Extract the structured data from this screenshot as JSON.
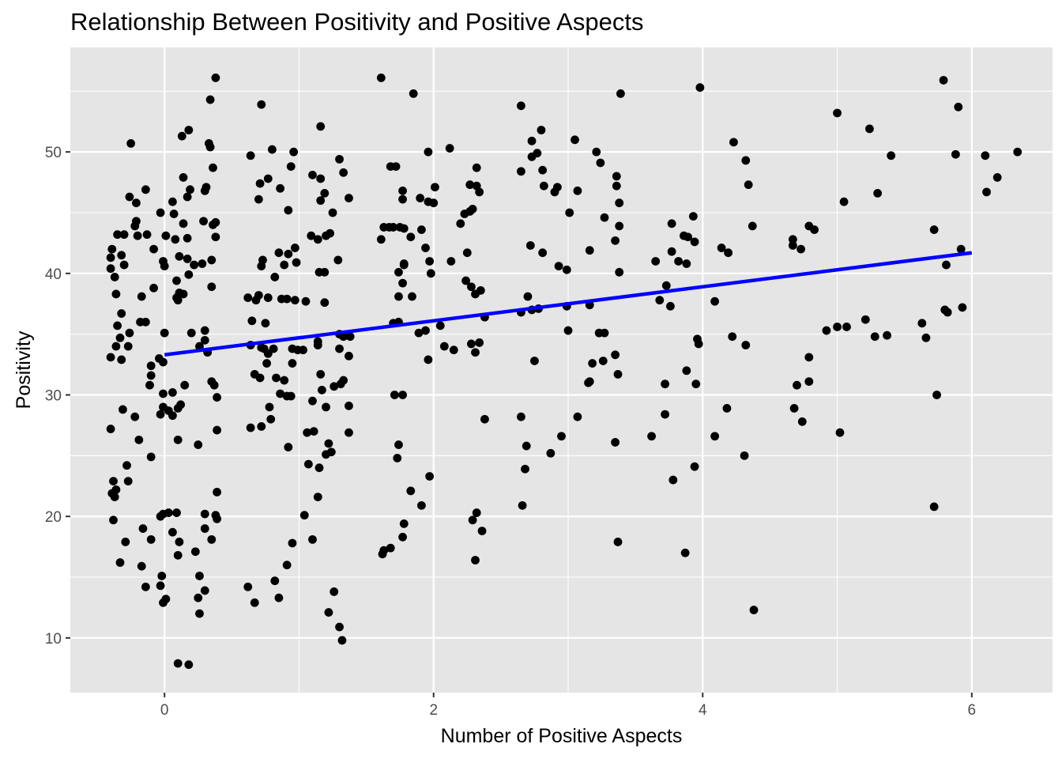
{
  "chart_data": {
    "type": "scatter",
    "title": "Relationship Between Positivity and Positive Aspects",
    "xlabel": "Number of Positive Aspects",
    "ylabel": "Positivity",
    "xlim": [
      -0.7,
      6.6
    ],
    "ylim": [
      5.5,
      58.6
    ],
    "x_ticks": [
      0,
      2,
      4,
      6
    ],
    "y_ticks": [
      10,
      20,
      30,
      40,
      50
    ],
    "grid": true,
    "colors": {
      "panel": "#e5e5e5",
      "grid": "#ffffff",
      "points": "#000000",
      "fit_line": "#0000ff"
    },
    "fit_line": {
      "x": [
        0,
        6
      ],
      "y": [
        33.3,
        41.7
      ]
    },
    "points": [
      [
        0.38,
        56.1
      ],
      [
        0.34,
        54.3
      ],
      [
        0.72,
        53.9
      ],
      [
        0.18,
        51.8
      ],
      [
        0.13,
        51.3
      ],
      [
        -0.25,
        50.7
      ],
      [
        0.33,
        50.7
      ],
      [
        0.34,
        50.4
      ],
      [
        0.36,
        48.7
      ],
      [
        0.14,
        47.9
      ],
      [
        0.31,
        47.1
      ],
      [
        0.19,
        46.9
      ],
      [
        0.3,
        46.8
      ],
      [
        0.17,
        46.3
      ],
      [
        -0.14,
        46.9
      ],
      [
        -0.26,
        46.3
      ],
      [
        -0.21,
        45.8
      ],
      [
        0.06,
        45.9
      ],
      [
        -0.03,
        45.0
      ],
      [
        0.07,
        44.9
      ],
      [
        0.29,
        44.3
      ],
      [
        0.38,
        44.2
      ],
      [
        -0.21,
        44.3
      ],
      [
        0.14,
        44.1
      ],
      [
        0.36,
        44.0
      ],
      [
        -0.22,
        43.9
      ],
      [
        0.01,
        43.1
      ],
      [
        -0.3,
        43.2
      ],
      [
        -0.35,
        43.2
      ],
      [
        -0.2,
        43.1
      ],
      [
        -0.13,
        43.2
      ],
      [
        0.17,
        42.9
      ],
      [
        0.38,
        43.0
      ],
      [
        0.08,
        42.8
      ],
      [
        -0.39,
        42.0
      ],
      [
        -0.4,
        41.3
      ],
      [
        -0.32,
        41.5
      ],
      [
        0.11,
        41.4
      ],
      [
        0.17,
        41.2
      ],
      [
        -0.08,
        42.0
      ],
      [
        -0.01,
        41.0
      ],
      [
        0.35,
        41.1
      ],
      [
        0.28,
        40.8
      ],
      [
        -0.3,
        40.7
      ],
      [
        0.22,
        40.7
      ],
      [
        -0.4,
        40.4
      ],
      [
        0.0,
        40.6
      ],
      [
        0.18,
        39.9
      ],
      [
        -0.37,
        39.7
      ],
      [
        0.09,
        39.4
      ],
      [
        0.35,
        38.9
      ],
      [
        0.11,
        38.4
      ],
      [
        0.14,
        38.3
      ],
      [
        0.09,
        38.0
      ],
      [
        -0.08,
        38.8
      ],
      [
        -0.36,
        38.3
      ],
      [
        -0.17,
        38.1
      ],
      [
        0.1,
        37.8
      ],
      [
        -0.32,
        36.7
      ],
      [
        -0.35,
        35.7
      ],
      [
        -0.18,
        36.0
      ],
      [
        -0.14,
        36.0
      ],
      [
        0.2,
        35.1
      ],
      [
        0.3,
        35.3
      ],
      [
        0.0,
        35.1
      ],
      [
        -0.26,
        35.1
      ],
      [
        -0.33,
        34.7
      ],
      [
        0.3,
        34.5
      ],
      [
        0.26,
        34.0
      ],
      [
        -0.36,
        34.0
      ],
      [
        -0.27,
        34.0
      ],
      [
        0.32,
        33.5
      ],
      [
        -0.4,
        33.1
      ],
      [
        -0.32,
        32.9
      ],
      [
        -0.04,
        33.0
      ],
      [
        -0.01,
        32.7
      ],
      [
        -0.1,
        32.4
      ],
      [
        -0.1,
        31.6
      ],
      [
        0.35,
        31.1
      ],
      [
        0.37,
        30.8
      ],
      [
        0.15,
        30.8
      ],
      [
        -0.11,
        30.8
      ],
      [
        0.06,
        30.2
      ],
      [
        -0.01,
        30.1
      ],
      [
        0.39,
        29.8
      ],
      [
        0.12,
        29.2
      ],
      [
        0.1,
        28.9
      ],
      [
        -0.01,
        29.0
      ],
      [
        0.03,
        28.7
      ],
      [
        0.06,
        28.3
      ],
      [
        -0.03,
        28.4
      ],
      [
        -0.31,
        28.8
      ],
      [
        -0.22,
        28.2
      ],
      [
        -0.4,
        27.2
      ],
      [
        0.39,
        27.1
      ],
      [
        0.1,
        26.3
      ],
      [
        -0.19,
        26.3
      ],
      [
        0.25,
        25.9
      ],
      [
        -0.1,
        24.9
      ],
      [
        -0.28,
        24.2
      ],
      [
        -0.27,
        22.9
      ],
      [
        -0.38,
        22.9
      ],
      [
        -0.36,
        22.2
      ],
      [
        -0.39,
        21.9
      ],
      [
        -0.37,
        21.6
      ],
      [
        0.39,
        22.0
      ],
      [
        0.09,
        20.3
      ],
      [
        0.03,
        20.3
      ],
      [
        -0.01,
        20.2
      ],
      [
        -0.03,
        20.0
      ],
      [
        0.3,
        20.2
      ],
      [
        0.38,
        20.1
      ],
      [
        0.39,
        19.8
      ],
      [
        -0.38,
        19.7
      ],
      [
        0.3,
        19.0
      ],
      [
        -0.16,
        19.0
      ],
      [
        0.06,
        18.7
      ],
      [
        0.35,
        18.1
      ],
      [
        -0.1,
        18.1
      ],
      [
        0.11,
        17.9
      ],
      [
        -0.29,
        17.9
      ],
      [
        0.23,
        17.1
      ],
      [
        0.1,
        16.8
      ],
      [
        -0.33,
        16.2
      ],
      [
        -0.17,
        15.9
      ],
      [
        -0.02,
        15.1
      ],
      [
        0.26,
        15.1
      ],
      [
        -0.03,
        14.3
      ],
      [
        0.3,
        13.9
      ],
      [
        -0.14,
        14.2
      ],
      [
        0.25,
        13.3
      ],
      [
        -0.01,
        12.9
      ],
      [
        0.01,
        13.2
      ],
      [
        0.26,
        12.0
      ],
      [
        0.1,
        7.9
      ],
      [
        0.18,
        7.8
      ],
      [
        0.73,
        41.1
      ],
      [
        0.72,
        40.6
      ],
      [
        0.77,
        47.8
      ],
      [
        0.71,
        47.4
      ],
      [
        0.7,
        46.1
      ],
      [
        0.8,
        50.2
      ],
      [
        0.94,
        48.8
      ],
      [
        0.96,
        50.0
      ],
      [
        0.86,
        47.0
      ],
      [
        0.82,
        39.7
      ],
      [
        0.85,
        41.7
      ],
      [
        0.92,
        41.6
      ],
      [
        0.98,
        40.9
      ],
      [
        0.89,
        40.7
      ],
      [
        0.97,
        42.1
      ],
      [
        0.92,
        45.2
      ],
      [
        0.64,
        49.7
      ],
      [
        0.62,
        38.0
      ],
      [
        0.68,
        37.8
      ],
      [
        0.7,
        38.2
      ],
      [
        0.77,
        38.0
      ],
      [
        0.87,
        37.9
      ],
      [
        0.91,
        37.9
      ],
      [
        0.97,
        37.8
      ],
      [
        1.05,
        37.7
      ],
      [
        0.65,
        36.1
      ],
      [
        0.75,
        35.9
      ],
      [
        0.64,
        34.1
      ],
      [
        0.72,
        33.9
      ],
      [
        0.74,
        33.8
      ],
      [
        0.81,
        33.8
      ],
      [
        0.95,
        33.8
      ],
      [
        0.99,
        33.7
      ],
      [
        1.03,
        33.7
      ],
      [
        0.77,
        33.4
      ],
      [
        0.76,
        32.6
      ],
      [
        0.95,
        32.6
      ],
      [
        0.89,
        31.2
      ],
      [
        0.67,
        31.7
      ],
      [
        0.71,
        31.4
      ],
      [
        0.83,
        31.4
      ],
      [
        0.86,
        30.1
      ],
      [
        0.91,
        29.9
      ],
      [
        0.94,
        29.9
      ],
      [
        0.78,
        29.0
      ],
      [
        0.79,
        28.0
      ],
      [
        0.72,
        27.4
      ],
      [
        0.64,
        27.3
      ],
      [
        0.92,
        25.7
      ],
      [
        1.06,
        26.9
      ],
      [
        1.11,
        27.0
      ],
      [
        1.07,
        24.3
      ],
      [
        1.04,
        20.1
      ],
      [
        0.95,
        17.8
      ],
      [
        0.82,
        14.7
      ],
      [
        0.62,
        14.2
      ],
      [
        0.91,
        16.0
      ],
      [
        0.85,
        13.3
      ],
      [
        0.67,
        12.9
      ],
      [
        1.1,
        48.1
      ],
      [
        1.16,
        52.1
      ],
      [
        1.19,
        46.6
      ],
      [
        1.16,
        47.8
      ],
      [
        1.33,
        48.3
      ],
      [
        1.3,
        49.4
      ],
      [
        1.37,
        46.2
      ],
      [
        1.16,
        46.0
      ],
      [
        1.25,
        45.0
      ],
      [
        1.2,
        43.1
      ],
      [
        1.23,
        43.3
      ],
      [
        1.09,
        43.1
      ],
      [
        1.14,
        42.8
      ],
      [
        1.29,
        41.1
      ],
      [
        1.15,
        40.1
      ],
      [
        1.19,
        40.1
      ],
      [
        1.19,
        37.6
      ],
      [
        1.14,
        34.4
      ],
      [
        1.14,
        34.1
      ],
      [
        1.33,
        34.8
      ],
      [
        1.3,
        35.0
      ],
      [
        1.38,
        34.8
      ],
      [
        1.3,
        33.8
      ],
      [
        1.37,
        33.2
      ],
      [
        1.16,
        31.7
      ],
      [
        1.26,
        30.7
      ],
      [
        1.33,
        31.2
      ],
      [
        1.31,
        30.9
      ],
      [
        1.17,
        30.4
      ],
      [
        1.1,
        29.5
      ],
      [
        1.2,
        29.0
      ],
      [
        1.37,
        29.1
      ],
      [
        1.22,
        26.0
      ],
      [
        1.37,
        26.9
      ],
      [
        1.2,
        25.1
      ],
      [
        1.24,
        25.3
      ],
      [
        1.15,
        24.0
      ],
      [
        1.14,
        21.6
      ],
      [
        1.1,
        18.1
      ],
      [
        1.26,
        13.8
      ],
      [
        1.22,
        12.1
      ],
      [
        1.3,
        10.9
      ],
      [
        1.32,
        9.8
      ],
      [
        1.61,
        56.1
      ],
      [
        1.85,
        54.8
      ],
      [
        1.96,
        50.0
      ],
      [
        2.12,
        50.3
      ],
      [
        1.72,
        48.8
      ],
      [
        1.68,
        48.8
      ],
      [
        2.01,
        47.1
      ],
      [
        1.77,
        46.8
      ],
      [
        1.77,
        46.1
      ],
      [
        1.9,
        46.2
      ],
      [
        1.96,
        45.9
      ],
      [
        2.0,
        45.8
      ],
      [
        1.63,
        43.8
      ],
      [
        1.67,
        43.8
      ],
      [
        1.7,
        43.8
      ],
      [
        1.75,
        43.8
      ],
      [
        1.78,
        43.7
      ],
      [
        1.61,
        42.8
      ],
      [
        1.91,
        43.6
      ],
      [
        1.83,
        43.0
      ],
      [
        1.94,
        42.1
      ],
      [
        1.78,
        40.8
      ],
      [
        1.74,
        40.1
      ],
      [
        1.78,
        40.7
      ],
      [
        1.97,
        41.0
      ],
      [
        1.98,
        40.0
      ],
      [
        1.77,
        39.2
      ],
      [
        1.74,
        38.1
      ],
      [
        1.84,
        38.1
      ],
      [
        1.7,
        35.9
      ],
      [
        1.74,
        36.0
      ],
      [
        2.05,
        35.7
      ],
      [
        1.89,
        35.1
      ],
      [
        1.94,
        35.3
      ],
      [
        2.08,
        34.0
      ],
      [
        2.15,
        33.7
      ],
      [
        1.96,
        32.9
      ],
      [
        1.71,
        30.0
      ],
      [
        1.77,
        30.0
      ],
      [
        1.74,
        25.9
      ],
      [
        1.73,
        24.8
      ],
      [
        1.97,
        23.3
      ],
      [
        1.83,
        22.1
      ],
      [
        1.91,
        20.9
      ],
      [
        1.78,
        19.4
      ],
      [
        1.77,
        18.3
      ],
      [
        1.63,
        17.2
      ],
      [
        1.68,
        17.4
      ],
      [
        1.62,
        16.9
      ],
      [
        2.32,
        48.7
      ],
      [
        2.32,
        47.2
      ],
      [
        2.27,
        47.3
      ],
      [
        2.34,
        46.7
      ],
      [
        2.27,
        45.1
      ],
      [
        2.29,
        45.3
      ],
      [
        2.23,
        44.9
      ],
      [
        2.2,
        44.1
      ],
      [
        2.25,
        41.7
      ],
      [
        2.13,
        41.0
      ],
      [
        2.24,
        39.4
      ],
      [
        2.28,
        38.9
      ],
      [
        2.35,
        38.6
      ],
      [
        2.31,
        38.3
      ],
      [
        2.38,
        36.4
      ],
      [
        2.28,
        34.2
      ],
      [
        2.34,
        34.3
      ],
      [
        2.31,
        33.5
      ],
      [
        2.38,
        28.0
      ],
      [
        2.32,
        20.3
      ],
      [
        2.29,
        19.7
      ],
      [
        2.36,
        18.8
      ],
      [
        2.31,
        16.4
      ],
      [
        2.65,
        53.8
      ],
      [
        2.8,
        51.8
      ],
      [
        2.73,
        50.9
      ],
      [
        2.77,
        49.9
      ],
      [
        2.73,
        49.6
      ],
      [
        2.65,
        48.4
      ],
      [
        2.81,
        48.5
      ],
      [
        2.9,
        46.7
      ],
      [
        2.92,
        47.1
      ],
      [
        2.82,
        47.2
      ],
      [
        2.72,
        42.3
      ],
      [
        2.81,
        41.7
      ],
      [
        2.93,
        40.6
      ],
      [
        2.99,
        40.3
      ],
      [
        2.65,
        36.8
      ],
      [
        2.7,
        38.1
      ],
      [
        2.73,
        37.0
      ],
      [
        2.78,
        37.1
      ],
      [
        2.99,
        37.3
      ],
      [
        3.0,
        35.3
      ],
      [
        2.75,
        32.8
      ],
      [
        2.65,
        28.2
      ],
      [
        2.69,
        25.8
      ],
      [
        2.87,
        25.2
      ],
      [
        2.68,
        23.9
      ],
      [
        2.95,
        26.6
      ],
      [
        2.66,
        20.9
      ],
      [
        3.05,
        51.0
      ],
      [
        3.21,
        50.0
      ],
      [
        3.24,
        49.1
      ],
      [
        3.07,
        46.8
      ],
      [
        3.01,
        45.0
      ],
      [
        3.27,
        44.6
      ],
      [
        3.16,
        41.9
      ],
      [
        3.16,
        37.4
      ],
      [
        3.07,
        28.2
      ],
      [
        3.16,
        31.1
      ],
      [
        3.15,
        31.0
      ],
      [
        3.18,
        32.6
      ],
      [
        3.26,
        32.8
      ],
      [
        3.23,
        35.1
      ],
      [
        3.27,
        35.1
      ],
      [
        3.36,
        48.0
      ],
      [
        3.36,
        47.2
      ],
      [
        3.38,
        45.8
      ],
      [
        3.38,
        43.9
      ],
      [
        3.35,
        42.7
      ],
      [
        3.38,
        40.1
      ],
      [
        3.35,
        33.3
      ],
      [
        3.37,
        31.7
      ],
      [
        3.35,
        26.1
      ],
      [
        3.37,
        17.9
      ],
      [
        3.39,
        54.8
      ],
      [
        3.65,
        41.0
      ],
      [
        3.73,
        39.0
      ],
      [
        3.76,
        37.3
      ],
      [
        3.68,
        37.8
      ],
      [
        3.72,
        30.9
      ],
      [
        3.72,
        28.4
      ],
      [
        3.62,
        26.6
      ],
      [
        3.78,
        23.0
      ],
      [
        3.77,
        44.1
      ],
      [
        3.77,
        41.8
      ],
      [
        3.82,
        41.0
      ],
      [
        3.86,
        43.1
      ],
      [
        3.89,
        43.0
      ],
      [
        3.94,
        42.6
      ],
      [
        3.93,
        44.7
      ],
      [
        3.88,
        40.8
      ],
      [
        3.96,
        34.6
      ],
      [
        3.97,
        34.2
      ],
      [
        3.95,
        30.9
      ],
      [
        3.88,
        32.0
      ],
      [
        3.94,
        24.1
      ],
      [
        3.87,
        17.0
      ],
      [
        3.98,
        55.3
      ],
      [
        4.09,
        37.7
      ],
      [
        4.14,
        42.1
      ],
      [
        4.19,
        41.7
      ],
      [
        4.22,
        34.8
      ],
      [
        4.18,
        28.9
      ],
      [
        4.09,
        26.6
      ],
      [
        4.23,
        50.8
      ],
      [
        4.32,
        49.3
      ],
      [
        4.34,
        47.3
      ],
      [
        4.37,
        43.9
      ],
      [
        4.32,
        34.1
      ],
      [
        4.31,
        25.0
      ],
      [
        4.38,
        12.3
      ],
      [
        4.67,
        42.8
      ],
      [
        4.67,
        42.3
      ],
      [
        4.73,
        42.0
      ],
      [
        4.79,
        43.9
      ],
      [
        4.83,
        43.6
      ],
      [
        4.79,
        33.1
      ],
      [
        4.79,
        31.1
      ],
      [
        4.7,
        30.8
      ],
      [
        4.68,
        28.9
      ],
      [
        4.74,
        27.8
      ],
      [
        5.0,
        53.2
      ],
      [
        5.05,
        45.9
      ],
      [
        4.92,
        35.3
      ],
      [
        5.0,
        35.6
      ],
      [
        5.07,
        35.6
      ],
      [
        5.02,
        26.9
      ],
      [
        5.24,
        51.9
      ],
      [
        5.3,
        46.6
      ],
      [
        5.21,
        36.2
      ],
      [
        5.28,
        34.8
      ],
      [
        5.37,
        34.9
      ],
      [
        5.4,
        49.7
      ],
      [
        5.63,
        35.9
      ],
      [
        5.66,
        34.7
      ],
      [
        5.72,
        43.6
      ],
      [
        5.74,
        30.0
      ],
      [
        5.72,
        20.8
      ],
      [
        5.79,
        55.9
      ],
      [
        5.8,
        37.0
      ],
      [
        5.82,
        36.8
      ],
      [
        5.81,
        40.7
      ],
      [
        5.88,
        49.8
      ],
      [
        5.9,
        53.7
      ],
      [
        5.92,
        42.0
      ],
      [
        5.93,
        37.2
      ],
      [
        6.1,
        49.7
      ],
      [
        6.11,
        46.7
      ],
      [
        6.19,
        47.9
      ],
      [
        6.34,
        50.0
      ]
    ]
  }
}
